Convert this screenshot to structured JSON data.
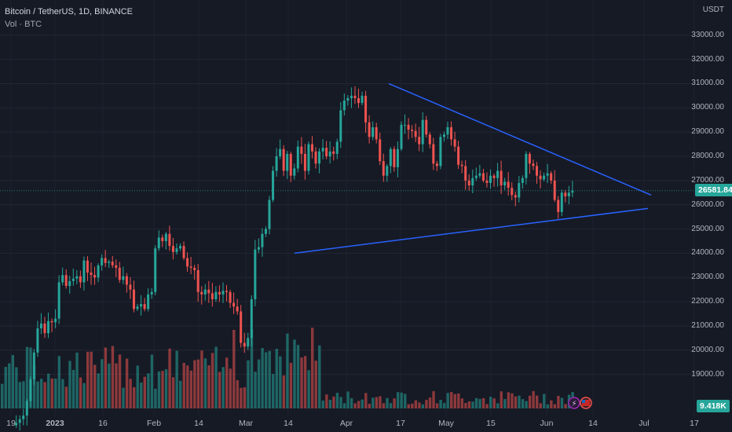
{
  "header": {
    "symbol_line": "Bitcoin / TetherUS, 1D, BINANCE",
    "volume_line": "Vol · BTC"
  },
  "axis": {
    "currency": "USDT"
  },
  "badges": {
    "last_price": "26581.84",
    "last_volume": "9.418K"
  },
  "colors": {
    "background": "#161a25",
    "up": "#26a69a",
    "down": "#ef5350",
    "trendline": "#2962ff",
    "price_tag": "#26a69a"
  },
  "chart_data": {
    "type": "candlestick",
    "ylim": [
      18000,
      33500
    ],
    "y_ticks": [
      19000,
      20000,
      21000,
      22000,
      23000,
      24000,
      25000,
      26000,
      27000,
      28000,
      29000,
      30000,
      31000,
      32000,
      33000
    ],
    "x_ticks": [
      "19",
      "2023",
      "16",
      "Feb",
      "14",
      "Mar",
      "14",
      "Apr",
      "17",
      "May",
      "15",
      "Jun",
      "14",
      "Jul",
      "17"
    ],
    "candles_close": [
      16700,
      16720,
      16800,
      16900,
      17000,
      17150,
      17300,
      17900,
      18800,
      19900,
      20900,
      21100,
      20700,
      21200,
      21150,
      21300,
      22800,
      23100,
      22650,
      22850,
      22950,
      23050,
      22800,
      23700,
      23200,
      23100,
      23000,
      23500,
      23800,
      23600,
      23650,
      23500,
      23400,
      22900,
      23050,
      22700,
      22500,
      21700,
      21800,
      21900,
      21700,
      22300,
      22400,
      24200,
      24650,
      24500,
      24800,
      24300,
      24050,
      24200,
      24300,
      23800,
      23450,
      23400,
      23300,
      22400,
      22300,
      22500,
      22350,
      22100,
      22400,
      22300,
      22450,
      22400,
      21950,
      21800,
      21600,
      20300,
      20150,
      20500,
      22100,
      24150,
      24250,
      24800,
      25000,
      26200,
      27400,
      28000,
      28300,
      27400,
      28100,
      27200,
      27500,
      28400,
      28100,
      27400,
      28500,
      28200,
      27700,
      28200,
      28350,
      28000,
      28200,
      28100,
      28600,
      29900,
      30300,
      30400,
      30500,
      30400,
      30200,
      30500,
      29400,
      28800,
      29200,
      28700,
      27800,
      27200,
      27600,
      28300,
      27550,
      28300,
      29300,
      29300,
      29100,
      29050,
      28800,
      28500,
      29500,
      28900,
      28500,
      27700,
      27600,
      28800,
      28900,
      29200,
      28700,
      28400,
      27650,
      27600,
      27000,
      26800,
      27100,
      27200,
      27300,
      27000,
      26900,
      27200,
      27100,
      27400,
      26800,
      26950,
      26700,
      26400,
      26300,
      26900,
      27100,
      28100,
      27700,
      27600,
      27200,
      27050,
      27200,
      27300,
      27000,
      26200,
      25700,
      26500,
      26350,
      26500,
      26581.84
    ],
    "trendline_upper": {
      "start": [
        "Apr 13",
        31000
      ],
      "end": [
        "Jul 1",
        26400
      ]
    },
    "trendline_lower": {
      "start": [
        "Mar 15",
        24000
      ],
      "end": [
        "Jul 1",
        25850
      ]
    }
  }
}
